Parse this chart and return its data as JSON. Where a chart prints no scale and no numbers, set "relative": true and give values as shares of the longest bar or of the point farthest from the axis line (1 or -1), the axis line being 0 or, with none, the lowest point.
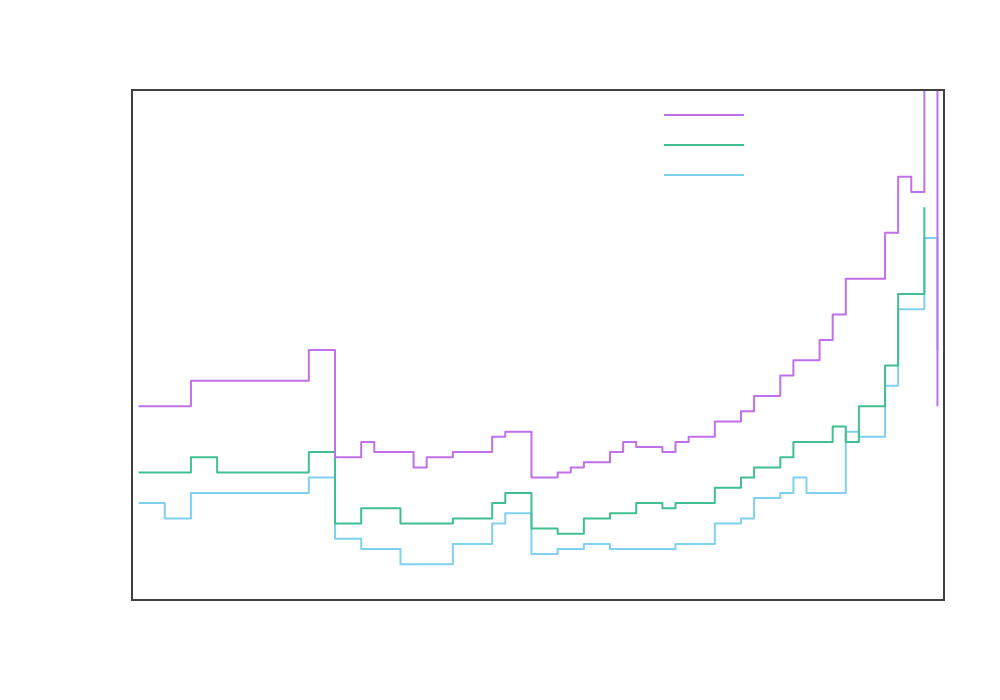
{
  "chart_data": {
    "type": "step",
    "relative": true,
    "grid": false,
    "categories": [
      null,
      null,
      null,
      null,
      null,
      null,
      null,
      null,
      null,
      null,
      null,
      null,
      null,
      null,
      null,
      null,
      null,
      null,
      null,
      null,
      null,
      null,
      null,
      null,
      null,
      null,
      null,
      null,
      null,
      null,
      null,
      null,
      null,
      null,
      null,
      null,
      null,
      null,
      null,
      null,
      null,
      null,
      null,
      null,
      null,
      null,
      null,
      null,
      null,
      null,
      null,
      null,
      null,
      null,
      null,
      null,
      null,
      null,
      null,
      null,
      null,
      null
    ],
    "series": [
      {
        "color": "#c070e8",
        "values": [
          0.38,
          0.38,
          0.38,
          0.38,
          0.43,
          0.43,
          0.43,
          0.43,
          0.43,
          0.43,
          0.43,
          0.43,
          0.43,
          0.49,
          0.49,
          0.28,
          0.28,
          0.31,
          0.29,
          0.29,
          0.29,
          0.26,
          0.28,
          0.28,
          0.29,
          0.29,
          0.29,
          0.32,
          0.33,
          0.33,
          0.24,
          0.24,
          0.25,
          0.26,
          0.27,
          0.27,
          0.29,
          0.31,
          0.3,
          0.3,
          0.29,
          0.31,
          0.32,
          0.32,
          0.35,
          0.35,
          0.37,
          0.4,
          0.4,
          0.44,
          0.47,
          0.47,
          0.51,
          0.56,
          0.63,
          0.63,
          0.63,
          0.72,
          0.83,
          0.8,
          1,
          0.38
        ]
      },
      {
        "color": "#40c090",
        "values": [
          0.25,
          0.25,
          0.25,
          0.25,
          0.28,
          0.28,
          0.25,
          0.25,
          0.25,
          0.25,
          0.25,
          0.25,
          0.25,
          0.29,
          0.29,
          0.15,
          0.15,
          0.18,
          0.18,
          0.18,
          0.15,
          0.15,
          0.15,
          0.15,
          0.16,
          0.16,
          0.16,
          0.19,
          0.21,
          0.21,
          0.14,
          0.14,
          0.13,
          0.13,
          0.16,
          0.16,
          0.17,
          0.17,
          0.19,
          0.19,
          0.18,
          0.19,
          0.19,
          0.19,
          0.22,
          0.22,
          0.24,
          0.26,
          0.26,
          0.28,
          0.31,
          0.31,
          0.31,
          0.34,
          0.31,
          0.38,
          0.38,
          0.46,
          0.6,
          0.6,
          0.77,
          null
        ]
      },
      {
        "color": "#80d0f0",
        "values": [
          0.19,
          0.19,
          0.16,
          0.16,
          0.21,
          0.21,
          0.21,
          0.21,
          0.21,
          0.21,
          0.21,
          0.21,
          0.21,
          0.24,
          0.24,
          0.12,
          0.12,
          0.1,
          0.1,
          0.1,
          0.07,
          0.07,
          0.07,
          0.07,
          0.11,
          0.11,
          0.11,
          0.15,
          0.17,
          0.17,
          0.09,
          0.09,
          0.1,
          0.1,
          0.11,
          0.11,
          0.1,
          0.1,
          0.1,
          0.1,
          0.1,
          0.11,
          0.11,
          0.11,
          0.15,
          0.15,
          0.16,
          0.2,
          0.2,
          0.21,
          0.24,
          0.21,
          0.21,
          0.21,
          0.33,
          0.32,
          0.32,
          0.42,
          0.57,
          0.57,
          0.71,
          0.49
        ]
      }
    ]
  }
}
